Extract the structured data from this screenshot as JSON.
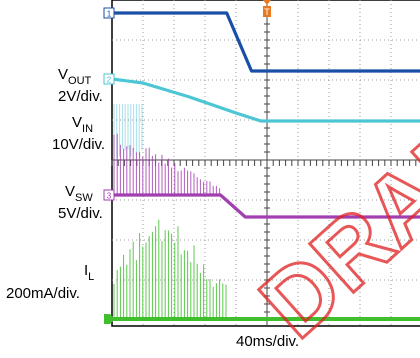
{
  "chart_data": {
    "type": "line",
    "title": "",
    "xlabel": "40ms/div.",
    "ylabel": "",
    "grid": true,
    "x_divisions": 10,
    "y_divisions": 8,
    "trigger_marker": "T",
    "channels": [
      {
        "id": "1",
        "name": "VOUT",
        "name_main": "V",
        "name_sub": "OUT",
        "scale": "2V/div.",
        "color": "#1a4fa8",
        "kind": "step",
        "x": [
          0,
          3.7,
          4.5,
          10
        ],
        "y": [
          3.75,
          3.75,
          2.3,
          2.3
        ]
      },
      {
        "id": "2",
        "name": "VIN",
        "name_main": "V",
        "name_sub": "IN",
        "scale": "10V/div.",
        "color": "#4cc6d4",
        "kind": "step",
        "x": [
          0,
          1.0,
          2.5,
          4.0,
          4.8,
          10
        ],
        "y": [
          2.1,
          2.0,
          1.65,
          1.25,
          1.05,
          1.05
        ]
      },
      {
        "id": "3",
        "name": "VSW",
        "name_main": "V",
        "name_sub": "SW",
        "scale": "5V/div.",
        "color": "#a23fb0",
        "kind": "switching",
        "x": [
          0,
          3.5,
          4.3,
          10
        ],
        "y": [
          -0.8,
          -0.8,
          -1.35,
          -1.35
        ],
        "burst_end": 3.5
      },
      {
        "id": "",
        "name": "IL",
        "name_main": "I",
        "name_sub": "L",
        "scale": "200mA/div.",
        "color": "#3fbf2e",
        "kind": "switching",
        "x": [
          0,
          10
        ],
        "y": [
          -3.9,
          -3.9
        ],
        "burst_end": 3.7
      }
    ]
  },
  "watermark": "DRAFT"
}
